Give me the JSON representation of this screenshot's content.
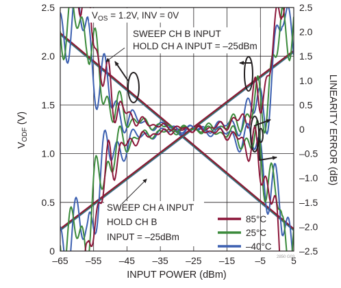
{
  "chart_data": {
    "type": "line",
    "xlabel": "INPUT POWER (dBm)",
    "ylabel_left_main": "V",
    "ylabel_left_sub": "ODF",
    "ylabel_left_unit": " (V)",
    "ylabel_right": "LINEARITY ERROR (dB)",
    "xlim": [
      -65,
      5
    ],
    "ylim_left": [
      0,
      2.5
    ],
    "ylim_right": [
      -2.5,
      2.5
    ],
    "x_ticks": [
      "–65",
      "–55",
      "–45",
      "–35",
      "–25",
      "–15",
      "–5",
      "5"
    ],
    "y_ticks_left": [
      "0",
      "0.5",
      "1.0",
      "1.5",
      "2.0",
      "2.5"
    ],
    "y_ticks_right": [
      "–2.5",
      "–2.0",
      "–1.5",
      "–1.0",
      "–0.5",
      "0",
      "0.5",
      "1.0",
      "1.5",
      "2.0",
      "2.5"
    ],
    "grid": true,
    "cond_prefix": "V",
    "cond_sub": "OS",
    "cond_suffix": " = 1.2V, INV = 0V",
    "annotations": {
      "sweep_b_1": "SWEEP CH B INPUT",
      "sweep_b_2": "HOLD CH A INPUT = –25dBm",
      "sweep_a_1": "SWEEP CH A INPUT",
      "sweep_a_2": "HOLD CH B",
      "sweep_a_3": "INPUT = –25dBm"
    },
    "legend": [
      {
        "name": "85°C",
        "color": "#8b1538"
      },
      {
        "name": "25°C",
        "color": "#3a8a3a"
      },
      {
        "name": "–40°C",
        "color": "#3b5fb0"
      }
    ],
    "figure_id": "2850 G03",
    "series": [
      {
        "group": "output_sweep_b",
        "x": [
          -65,
          5
        ],
        "y": [
          2.23,
          0.22
        ]
      },
      {
        "group": "output_sweep_a",
        "x": [
          -65,
          5
        ],
        "y": [
          0.22,
          2.05
        ]
      }
    ],
    "colors": {
      "text": "#231f20",
      "grid": "#231f20",
      "temp_85": "#8b1538",
      "temp_25": "#3a8a3a",
      "temp_m40": "#3b5fb0"
    }
  }
}
